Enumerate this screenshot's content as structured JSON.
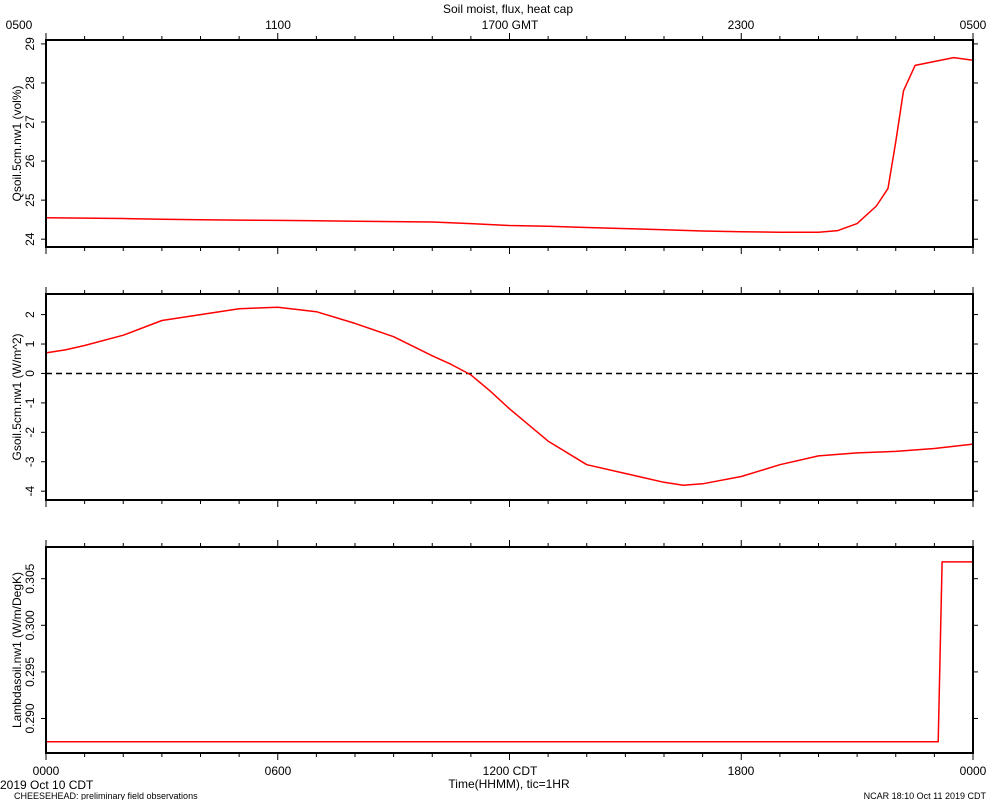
{
  "title": "Soil moist, flux, heat cap",
  "top_axis": {
    "label": "GMT",
    "ticks": [
      "0500",
      "1100",
      "1700 GMT",
      "2300",
      "0500"
    ]
  },
  "bottom_axis": {
    "ticks": [
      "0000",
      "0600",
      "1200 CDT",
      "1800",
      "0000"
    ],
    "label": "Time(HHMM), tic=1HR"
  },
  "footer": {
    "left_date": "2019 Oct 10 CDT",
    "left_note": "CHEESEHEAD: preliminary field observations",
    "right_note": "NCAR 18:10 Oct 11 2019 CDT"
  },
  "chart_data": [
    {
      "type": "line",
      "title": "Soil moist, flux, heat cap",
      "ylabel": "Qsoil.5cm.nw1 (vol%)",
      "xlim": [
        0,
        24
      ],
      "ylim": [
        23.8,
        29.1
      ],
      "yticks": [
        24,
        25,
        26,
        27,
        28,
        29
      ],
      "ytick_labels": [
        "24",
        "25",
        "26",
        "27",
        "28",
        "29"
      ],
      "color": "#ff0000",
      "series": [
        {
          "x": [
            0,
            1,
            2,
            3,
            4,
            5,
            6,
            7,
            8,
            9,
            10,
            11,
            12,
            13,
            14,
            15,
            16,
            17,
            18,
            19,
            20,
            20.5,
            21,
            21.5,
            21.8,
            22,
            22.2,
            22.5,
            23,
            23.5,
            24
          ],
          "y": [
            24.55,
            24.54,
            24.53,
            24.51,
            24.5,
            24.49,
            24.48,
            24.47,
            24.46,
            24.45,
            24.44,
            24.4,
            24.35,
            24.33,
            24.3,
            24.27,
            24.24,
            24.21,
            24.19,
            24.18,
            24.18,
            24.22,
            24.4,
            24.85,
            25.3,
            26.5,
            27.8,
            28.45,
            28.55,
            28.65,
            28.58
          ]
        }
      ]
    },
    {
      "type": "line",
      "ylabel": "Gsoil.5cm.nw1 (W/m^2)",
      "xlim": [
        0,
        24
      ],
      "ylim": [
        -4.3,
        2.7
      ],
      "yticks": [
        -4,
        -3,
        -2,
        -1,
        0,
        1,
        2
      ],
      "ytick_labels": [
        "-4",
        "-3",
        "-2",
        "-1",
        "0",
        "1",
        "2"
      ],
      "zero_line": true,
      "color": "#ff0000",
      "series": [
        {
          "x": [
            0,
            0.5,
            1,
            2,
            3,
            4,
            5,
            6,
            7,
            8,
            9,
            10,
            10.5,
            11,
            11.5,
            12,
            13,
            14,
            15,
            16,
            16.5,
            17,
            18,
            19,
            20,
            21,
            22,
            23,
            24
          ],
          "y": [
            0.7,
            0.8,
            0.95,
            1.3,
            1.8,
            2.0,
            2.2,
            2.25,
            2.1,
            1.7,
            1.25,
            0.6,
            0.3,
            -0.05,
            -0.6,
            -1.2,
            -2.3,
            -3.1,
            -3.4,
            -3.7,
            -3.8,
            -3.75,
            -3.5,
            -3.1,
            -2.8,
            -2.7,
            -2.65,
            -2.55,
            -2.4
          ]
        }
      ]
    },
    {
      "type": "line",
      "ylabel": "Lambdasoil.nw1 (W/m/DegK)",
      "xlim": [
        0,
        24
      ],
      "ylim": [
        0.2863,
        0.3084
      ],
      "yticks": [
        0.29,
        0.295,
        0.3,
        0.305
      ],
      "ytick_labels": [
        "0.290",
        "0.295",
        "0.300",
        "0.305"
      ],
      "color": "#ff0000",
      "series": [
        {
          "x": [
            0,
            23.1,
            23.2,
            24
          ],
          "y": [
            0.2875,
            0.2875,
            0.3068,
            0.3068
          ]
        }
      ]
    }
  ]
}
